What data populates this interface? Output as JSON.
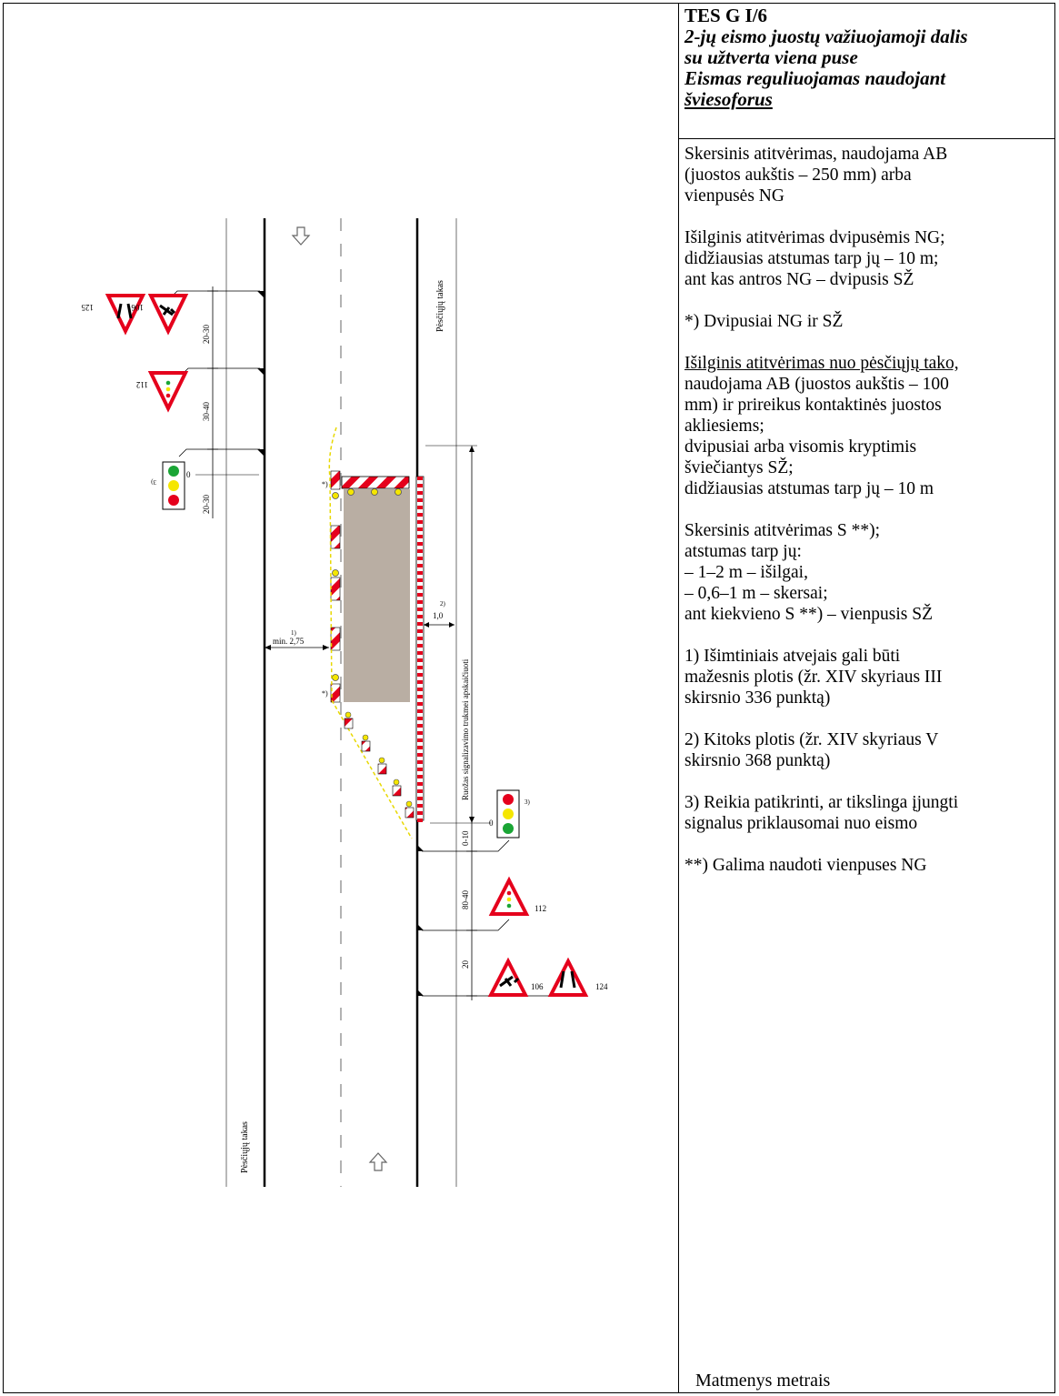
{
  "header": {
    "code": "TES G I/6",
    "subtitle_lines": [
      "2-jų eismo juostų važiuojamoji dalis",
      "su užtverta viena puse",
      "Eismas reguliuojamas naudojant",
      "šviesoforus"
    ]
  },
  "notes": [
    {
      "lines": [
        "Skersinis atitvėrimas, naudojama AB",
        "(juostos aukštis – 250 mm) arba",
        "vienpusės NG"
      ]
    },
    {
      "lines": [
        "Išilginis atitvėrimas dvipusėmis NG;",
        "didžiausias atstumas tarp jų – 10 m;",
        "ant kas antros NG – dvipusis SŽ"
      ]
    },
    {
      "lines": [
        "*) Dvipusiai NG ir SŽ"
      ]
    },
    {
      "lines": [
        "Išilginis atitvėrimas nuo pėsčiųjų tako,",
        "naudojama AB (juostos aukštis – 100",
        "mm) ir prireikus kontaktinės juostos",
        "akliesiems;",
        "dvipusiai arba visomis kryptimis",
        "šviečiantys SŽ;",
        "didžiausias atstumas tarp jų – 10 m"
      ],
      "underline_first": true
    },
    {
      "lines": [
        "Skersinis atitvėrimas S **);",
        "atstumas tarp jų:",
        "– 1–2 m – išilgai,",
        "– 0,6–1 m – skersai;",
        "ant kiekvieno S **) – vienpusis SŽ"
      ]
    },
    {
      "lines": [
        "1) Išimtiniais atvejais gali būti",
        "mažesnis plotis (žr. XIV skyriaus III",
        "skirsnio 336 punktą)"
      ]
    },
    {
      "lines": [
        "2) Kitoks plotis (žr. XIV skyriaus V",
        "skirsnio 368 punktą)"
      ]
    },
    {
      "lines": [
        "3) Reikia patikrinti, ar tikslinga įjungti",
        "signalus priklausomai nuo eismo"
      ]
    },
    {
      "lines": [
        "**) Galima naudoti vienpuses NG"
      ]
    }
  ],
  "footer": "Matmenys metrais",
  "diagram": {
    "sidewalk_label": "Pėsčiųjų takas",
    "duration_label": "Ruožas signalizavimo trukmei apskaičiuoti",
    "dims_top": [
      "20-30",
      "30-40",
      "20-30"
    ],
    "dims_bottom": [
      "0-10",
      "80-40",
      "20"
    ],
    "zero_label": "0",
    "lane_width_label": "min. 2,75",
    "lane_width_note": "1)",
    "side_gap_label": "1,0",
    "side_gap_note": "2)",
    "star_label": "*)",
    "light_note_top": "3)",
    "light_note_bottom": "3)",
    "sign_numbers": {
      "top_left_a": "125",
      "top_left_b": "106",
      "top_mid": "112",
      "bottom_112": "112",
      "bottom_106": "106",
      "bottom_124": "124"
    },
    "colors": {
      "red": "#e5001c",
      "yellow": "#f5e600",
      "green": "#1aa535",
      "work_area": "#b9aea3"
    }
  }
}
